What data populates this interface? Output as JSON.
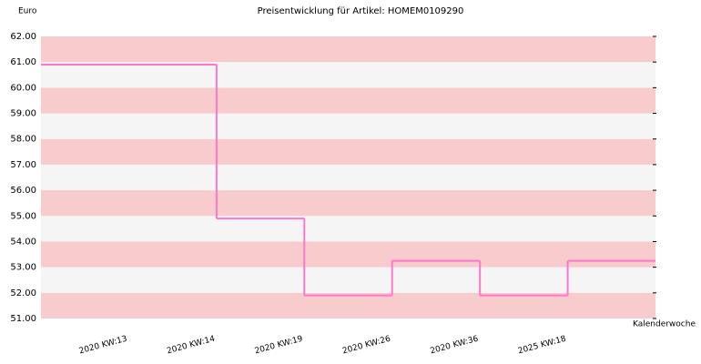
{
  "chart_data": {
    "type": "step",
    "title": "Preisentwicklung für Artikel: HOMEM0109290",
    "y_label": "Euro",
    "x_label": "Kalenderwoche",
    "categories": [
      "2020 KW:13",
      "2020 KW:14",
      "2020 KW:19",
      "2020 KW:26",
      "2020 KW:36",
      "2025 KW:18"
    ],
    "values": [
      60.9,
      54.9,
      51.9,
      53.25,
      51.9,
      53.25
    ],
    "color": "#ff77cc",
    "band_colors": [
      "#f8cccc",
      "#f5f5f5"
    ],
    "ylim": [
      51,
      62
    ],
    "yticks": [
      {
        "value": 51,
        "label": "51.00"
      },
      {
        "value": 52,
        "label": "52.00"
      },
      {
        "value": 53,
        "label": "53.00"
      },
      {
        "value": 54,
        "label": "54.00"
      },
      {
        "value": 55,
        "label": "55.00"
      },
      {
        "value": 56,
        "label": "56.00"
      },
      {
        "value": 57,
        "label": "57.00"
      },
      {
        "value": 58,
        "label": "58.00"
      },
      {
        "value": 59,
        "label": "59.00"
      },
      {
        "value": 60,
        "label": "60.00"
      },
      {
        "value": 61,
        "label": "61.00"
      },
      {
        "value": 62,
        "label": "62.00"
      }
    ]
  }
}
